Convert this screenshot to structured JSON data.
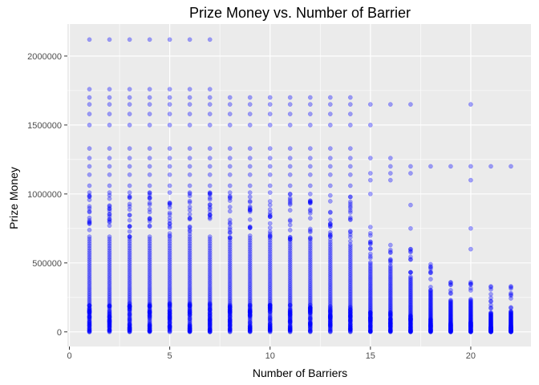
{
  "chart_data": {
    "type": "scatter",
    "title": "Prize Money vs. Number of Barrier",
    "xlabel": "Number of Barriers",
    "ylabel": "Prize Money",
    "xlim": [
      -0.1,
      23.0
    ],
    "ylim": [
      -106000,
      2232000
    ],
    "x_ticks": [
      0,
      5,
      10,
      15,
      20
    ],
    "y_ticks": [
      0,
      500000,
      1000000,
      1500000,
      2000000
    ],
    "x_tick_labels": [
      "0",
      "5",
      "10",
      "15",
      "20"
    ],
    "y_tick_labels": [
      "0",
      "500000",
      "1000000",
      "1500000",
      "2000000"
    ],
    "grid": true,
    "legend": "none",
    "colors": {
      "panel": "#ebebeb",
      "grid": "#ffffff",
      "point": "#0000ff",
      "tick": "#333333"
    },
    "point_alpha": 0.35,
    "barriers": [
      {
        "x": 1,
        "dense_max": 690000,
        "scatter_max": 1010000,
        "outliers": [
          1060000,
          1140000,
          1200000,
          1260000,
          1330000,
          1500000,
          1580000,
          1650000,
          1700000,
          1760000,
          2120000
        ]
      },
      {
        "x": 2,
        "dense_max": 690000,
        "scatter_max": 1010000,
        "outliers": [
          1060000,
          1140000,
          1200000,
          1260000,
          1330000,
          1500000,
          1580000,
          1650000,
          1700000,
          1760000,
          2120000
        ]
      },
      {
        "x": 3,
        "dense_max": 690000,
        "scatter_max": 1010000,
        "outliers": [
          1060000,
          1140000,
          1200000,
          1260000,
          1330000,
          1500000,
          1580000,
          1650000,
          1700000,
          1760000,
          2120000
        ]
      },
      {
        "x": 4,
        "dense_max": 690000,
        "scatter_max": 1010000,
        "outliers": [
          1060000,
          1140000,
          1200000,
          1260000,
          1330000,
          1500000,
          1580000,
          1650000,
          1700000,
          1760000,
          2120000
        ]
      },
      {
        "x": 5,
        "dense_max": 690000,
        "scatter_max": 1010000,
        "outliers": [
          1060000,
          1140000,
          1200000,
          1260000,
          1330000,
          1500000,
          1580000,
          1650000,
          1700000,
          1760000,
          2120000
        ]
      },
      {
        "x": 6,
        "dense_max": 690000,
        "scatter_max": 1010000,
        "outliers": [
          1060000,
          1140000,
          1200000,
          1260000,
          1330000,
          1500000,
          1580000,
          1650000,
          1700000,
          1760000,
          2120000
        ]
      },
      {
        "x": 7,
        "dense_max": 690000,
        "scatter_max": 1010000,
        "outliers": [
          1060000,
          1140000,
          1200000,
          1260000,
          1330000,
          1500000,
          1580000,
          1650000,
          1700000,
          1760000,
          2120000
        ]
      },
      {
        "x": 8,
        "dense_max": 680000,
        "scatter_max": 1010000,
        "outliers": [
          1060000,
          1140000,
          1200000,
          1260000,
          1330000,
          1500000,
          1580000,
          1650000,
          1700000
        ]
      },
      {
        "x": 9,
        "dense_max": 680000,
        "scatter_max": 1010000,
        "outliers": [
          1060000,
          1140000,
          1200000,
          1260000,
          1330000,
          1500000,
          1580000,
          1650000,
          1700000
        ]
      },
      {
        "x": 10,
        "dense_max": 680000,
        "scatter_max": 1010000,
        "outliers": [
          1060000,
          1140000,
          1200000,
          1260000,
          1330000,
          1500000,
          1580000,
          1650000,
          1700000
        ]
      },
      {
        "x": 11,
        "dense_max": 670000,
        "scatter_max": 1000000,
        "outliers": [
          1060000,
          1140000,
          1200000,
          1260000,
          1330000,
          1500000,
          1580000,
          1650000,
          1700000
        ]
      },
      {
        "x": 12,
        "dense_max": 670000,
        "scatter_max": 1000000,
        "outliers": [
          1060000,
          1140000,
          1200000,
          1260000,
          1330000,
          1500000,
          1580000,
          1650000,
          1700000
        ]
      },
      {
        "x": 13,
        "dense_max": 650000,
        "scatter_max": 990000,
        "outliers": [
          1060000,
          1140000,
          1200000,
          1260000,
          1330000,
          1500000,
          1580000,
          1650000,
          1700000
        ]
      },
      {
        "x": 14,
        "dense_max": 620000,
        "scatter_max": 980000,
        "outliers": [
          1060000,
          1140000,
          1200000,
          1260000,
          1330000,
          1500000,
          1580000,
          1650000,
          1700000
        ]
      },
      {
        "x": 15,
        "dense_max": 480000,
        "scatter_max": 760000,
        "outliers": [
          1000000,
          1100000,
          1150000,
          1260000,
          1500000,
          1650000
        ]
      },
      {
        "x": 16,
        "dense_max": 480000,
        "scatter_max": 630000,
        "outliers": [
          1100000,
          1150000,
          1200000,
          1260000,
          1650000
        ]
      },
      {
        "x": 17,
        "dense_max": 400000,
        "scatter_max": 600000,
        "outliers": [
          750000,
          920000,
          1150000,
          1200000,
          1650000
        ]
      },
      {
        "x": 18,
        "dense_max": 300000,
        "scatter_max": 490000,
        "outliers": [
          1200000
        ]
      },
      {
        "x": 19,
        "dense_max": 230000,
        "scatter_max": 360000,
        "outliers": [
          1200000
        ]
      },
      {
        "x": 20,
        "dense_max": 230000,
        "scatter_max": 360000,
        "outliers": [
          600000,
          750000,
          1100000,
          1200000,
          1650000
        ]
      },
      {
        "x": 21,
        "dense_max": 140000,
        "scatter_max": 330000,
        "outliers": [
          1200000
        ]
      },
      {
        "x": 22,
        "dense_max": 150000,
        "scatter_max": 330000,
        "outliers": [
          1200000
        ]
      }
    ]
  }
}
